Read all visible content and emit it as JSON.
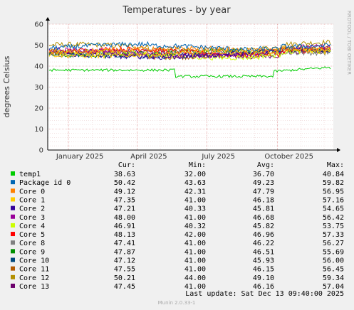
{
  "chart_data": {
    "type": "line",
    "title": "Temperatures - by year",
    "ylabel": "degrees Celsius",
    "xlabel": "",
    "side_label": "RRDTOOL / TOBI OETIKER",
    "ylim": [
      0,
      60
    ],
    "y_ticks": [
      "0",
      "10",
      "20",
      "30",
      "40",
      "50",
      "60"
    ],
    "x_tick_labels": [
      "January 2025",
      "April 2025",
      "July 2025",
      "October 2025"
    ],
    "x_range": [
      "2024-12-05",
      "2025-12-13"
    ],
    "x_tick_dates": [
      "2025-01-01",
      "2025-04-01",
      "2025-07-01",
      "2025-10-01"
    ],
    "grid": true,
    "legend_position": "bottom",
    "columns": [
      "Cur:",
      "Min:",
      "Avg:",
      "Max:"
    ],
    "series": [
      {
        "name": "temp1",
        "color": "#00cc00",
        "cur": "38.63",
        "min": "32.00",
        "avg": "36.70",
        "max": "40.84"
      },
      {
        "name": "Package id 0",
        "color": "#0066b3",
        "cur": "50.42",
        "min": "43.63",
        "avg": "49.23",
        "max": "59.82"
      },
      {
        "name": "Core 0",
        "color": "#ff8000",
        "cur": "49.12",
        "min": "42.31",
        "avg": "47.79",
        "max": "56.95"
      },
      {
        "name": "Core 1",
        "color": "#ffcc00",
        "cur": "47.35",
        "min": "41.00",
        "avg": "46.18",
        "max": "57.16"
      },
      {
        "name": "Core 2",
        "color": "#330099",
        "cur": "47.21",
        "min": "40.33",
        "avg": "45.81",
        "max": "54.65"
      },
      {
        "name": "Core 3",
        "color": "#990099",
        "cur": "48.00",
        "min": "41.00",
        "avg": "46.68",
        "max": "56.42"
      },
      {
        "name": "Core 4",
        "color": "#ccff00",
        "cur": "46.91",
        "min": "40.32",
        "avg": "45.82",
        "max": "53.75"
      },
      {
        "name": "Core 5",
        "color": "#ff0000",
        "cur": "48.13",
        "min": "42.00",
        "avg": "46.96",
        "max": "57.33"
      },
      {
        "name": "Core 8",
        "color": "#808080",
        "cur": "47.41",
        "min": "41.00",
        "avg": "46.22",
        "max": "56.27"
      },
      {
        "name": "Core 9",
        "color": "#008f00",
        "cur": "47.87",
        "min": "41.00",
        "avg": "46.51",
        "max": "55.69"
      },
      {
        "name": "Core 10",
        "color": "#00487d",
        "cur": "47.12",
        "min": "41.00",
        "avg": "45.93",
        "max": "56.00"
      },
      {
        "name": "Core 11",
        "color": "#b35a00",
        "cur": "47.55",
        "min": "41.00",
        "avg": "46.15",
        "max": "56.45"
      },
      {
        "name": "Core 12",
        "color": "#b38f00",
        "cur": "50.21",
        "min": "44.00",
        "avg": "49.10",
        "max": "59.34"
      },
      {
        "name": "Core 13",
        "color": "#6b006b",
        "cur": "47.45",
        "min": "41.00",
        "avg": "46.16",
        "max": "57.04"
      }
    ]
  },
  "footer": {
    "last_update": "Last update:  Sat Dec 13 09:40:00 2025",
    "version": "Munin 2.0.33-1"
  }
}
